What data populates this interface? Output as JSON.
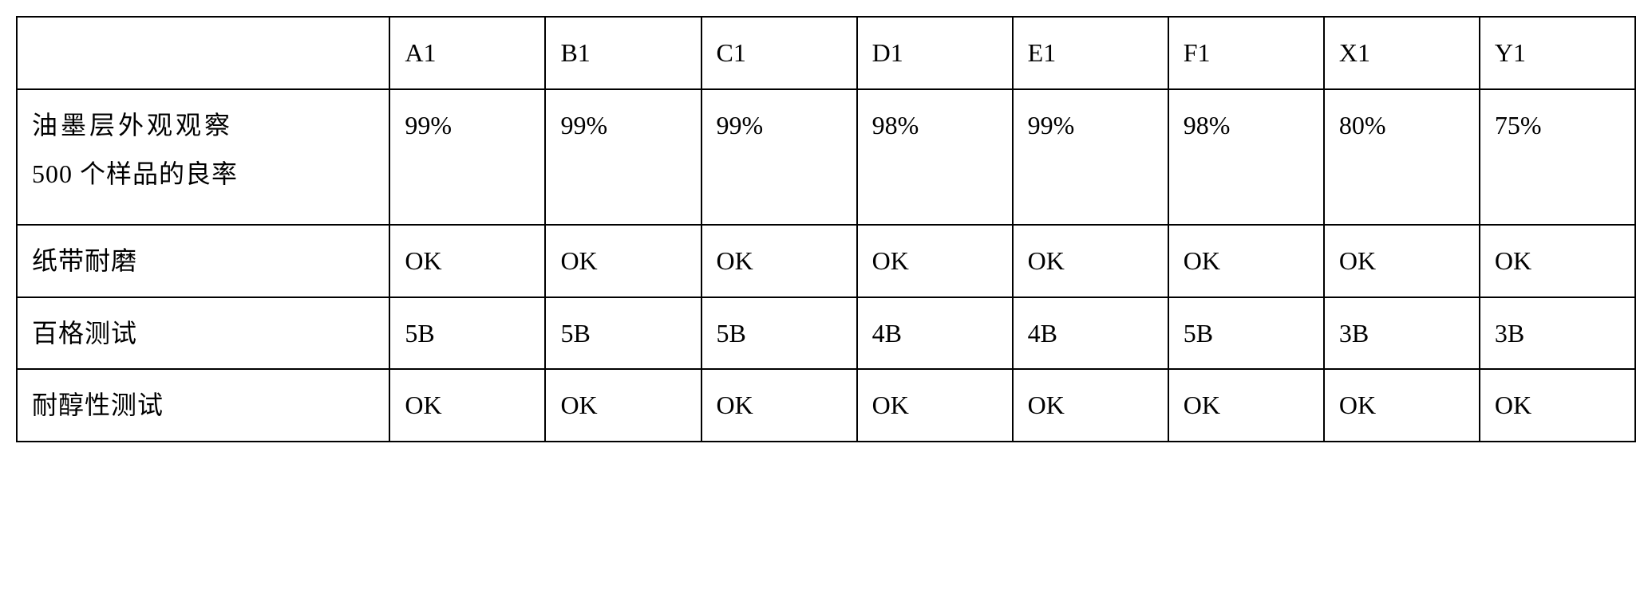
{
  "table": {
    "columns": [
      "",
      "A1",
      "B1",
      "C1",
      "D1",
      "E1",
      "F1",
      "X1",
      "Y1"
    ],
    "rows": [
      {
        "label_line1": "油墨层外观观察",
        "label_line2": "500 个样品的良率",
        "values": [
          "99%",
          "99%",
          "99%",
          "98%",
          "99%",
          "98%",
          "80%",
          "75%"
        ],
        "tall": true
      },
      {
        "label": "纸带耐磨",
        "values": [
          "OK",
          "OK",
          "OK",
          "OK",
          "OK",
          "OK",
          "OK",
          "OK"
        ],
        "tall": false
      },
      {
        "label": "百格测试",
        "values": [
          "5B",
          "5B",
          "5B",
          "4B",
          "4B",
          "5B",
          "3B",
          "3B"
        ],
        "tall": false
      },
      {
        "label": "耐醇性测试",
        "values": [
          "OK",
          "OK",
          "OK",
          "OK",
          "OK",
          "OK",
          "OK",
          "OK"
        ],
        "tall": false
      }
    ],
    "border_color": "#000000",
    "background_color": "#ffffff",
    "font_size": 32,
    "cell_padding": 14
  }
}
